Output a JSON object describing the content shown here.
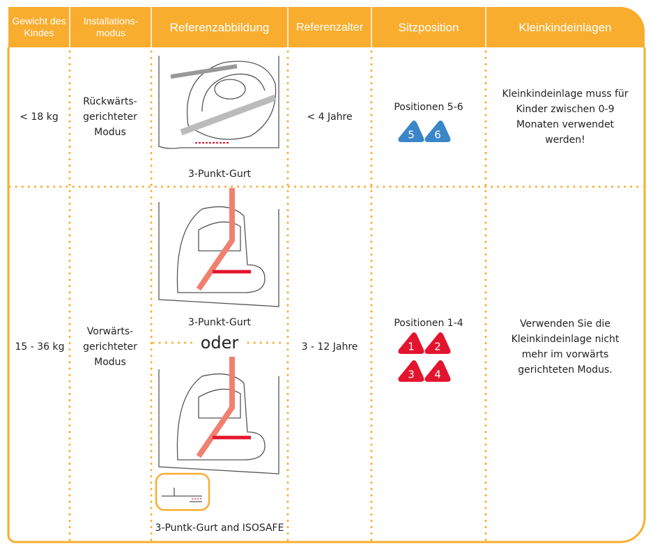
{
  "header": [
    "Gewicht des Kindes",
    "Installations-modus",
    "Referenzabbildung",
    "Referenzalter",
    "Sitzposition",
    "Kleinkindeinlagen"
  ],
  "rows": [
    {
      "weight": "< 18 kg",
      "mode": "Rückwärts-gerichteter Modus",
      "captions": [
        "3-Punkt-Gurt"
      ],
      "age": "< 4 Jahre",
      "position": "Positionen 5-6",
      "badges": [
        "5",
        "6"
      ],
      "insert": "Kleinkindeinlage muss für Kinder zwischen 0-9 Monaten verwendet werden!"
    },
    {
      "weight": "15 - 36 kg",
      "mode": "Vorwärts-gerichteter Modus",
      "captions": [
        "3-Punkt-Gurt",
        "oder",
        "3-Puntk-Gurt and ISOSAFE"
      ],
      "age": "3 - 12 Jahre",
      "position": "Positionen 1-4",
      "badges": [
        "1",
        "2",
        "3",
        "4"
      ],
      "insert": "Verwenden Sie die Kleinkindeinlage nicht mehr im vorwärts gerichteten Modus."
    }
  ]
}
